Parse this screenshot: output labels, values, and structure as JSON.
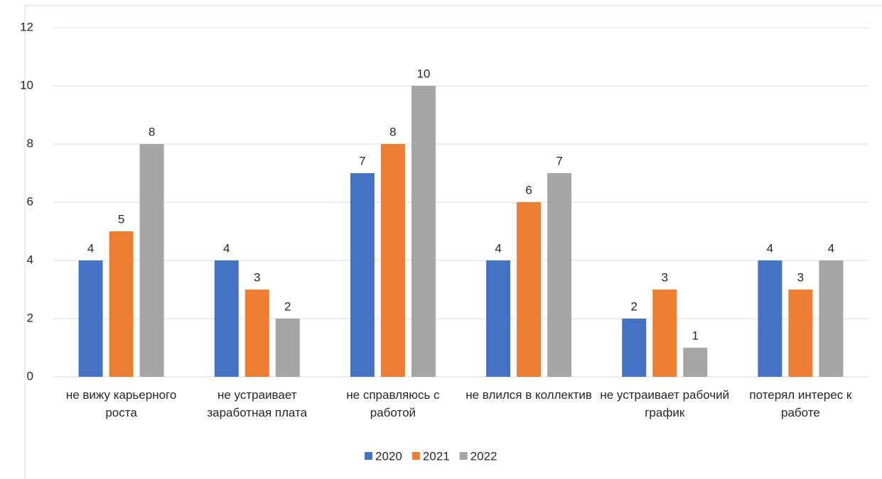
{
  "chart_data": {
    "type": "bar",
    "categories": [
      "не вижу карьерного роста",
      "не устраивает заработная плата",
      "не справляюсь с работой",
      "не влился в коллектив",
      "не устраивает рабочий график",
      "потерял интерес к работе"
    ],
    "series": [
      {
        "name": "2020",
        "color": "#4472c4",
        "values": [
          4,
          4,
          7,
          4,
          2,
          4
        ]
      },
      {
        "name": "2021",
        "color": "#ed7d31",
        "values": [
          5,
          3,
          8,
          6,
          3,
          3
        ]
      },
      {
        "name": "2022",
        "color": "#a5a5a5",
        "values": [
          8,
          2,
          10,
          7,
          1,
          4
        ]
      }
    ],
    "ylim": [
      0,
      12
    ],
    "yticks": [
      0,
      2,
      4,
      6,
      8,
      10,
      12
    ],
    "grid": true,
    "legend": "bottom"
  }
}
